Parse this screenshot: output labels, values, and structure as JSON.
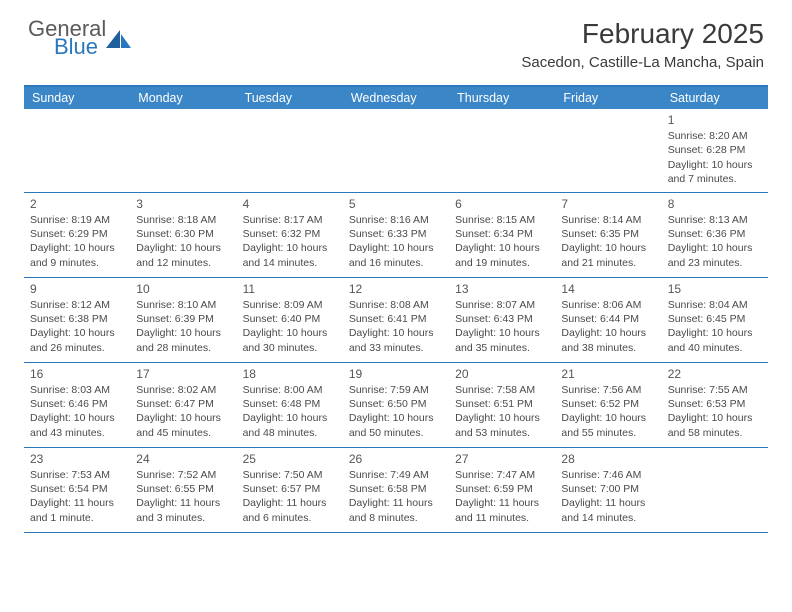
{
  "logo": {
    "word1": "General",
    "word2": "Blue"
  },
  "title": "February 2025",
  "location": "Sacedon, Castille-La Mancha, Spain",
  "colors": {
    "header_bar": "#3b86c7",
    "border": "#2b77bd",
    "text": "#4a4a4a",
    "logo_blue": "#2b77bd",
    "logo_gray": "#5a5a5a"
  },
  "day_names": [
    "Sunday",
    "Monday",
    "Tuesday",
    "Wednesday",
    "Thursday",
    "Friday",
    "Saturday"
  ],
  "weeks": [
    [
      null,
      null,
      null,
      null,
      null,
      null,
      {
        "n": "1",
        "sr": "Sunrise: 8:20 AM",
        "ss": "Sunset: 6:28 PM",
        "d1": "Daylight: 10 hours",
        "d2": "and 7 minutes."
      }
    ],
    [
      {
        "n": "2",
        "sr": "Sunrise: 8:19 AM",
        "ss": "Sunset: 6:29 PM",
        "d1": "Daylight: 10 hours",
        "d2": "and 9 minutes."
      },
      {
        "n": "3",
        "sr": "Sunrise: 8:18 AM",
        "ss": "Sunset: 6:30 PM",
        "d1": "Daylight: 10 hours",
        "d2": "and 12 minutes."
      },
      {
        "n": "4",
        "sr": "Sunrise: 8:17 AM",
        "ss": "Sunset: 6:32 PM",
        "d1": "Daylight: 10 hours",
        "d2": "and 14 minutes."
      },
      {
        "n": "5",
        "sr": "Sunrise: 8:16 AM",
        "ss": "Sunset: 6:33 PM",
        "d1": "Daylight: 10 hours",
        "d2": "and 16 minutes."
      },
      {
        "n": "6",
        "sr": "Sunrise: 8:15 AM",
        "ss": "Sunset: 6:34 PM",
        "d1": "Daylight: 10 hours",
        "d2": "and 19 minutes."
      },
      {
        "n": "7",
        "sr": "Sunrise: 8:14 AM",
        "ss": "Sunset: 6:35 PM",
        "d1": "Daylight: 10 hours",
        "d2": "and 21 minutes."
      },
      {
        "n": "8",
        "sr": "Sunrise: 8:13 AM",
        "ss": "Sunset: 6:36 PM",
        "d1": "Daylight: 10 hours",
        "d2": "and 23 minutes."
      }
    ],
    [
      {
        "n": "9",
        "sr": "Sunrise: 8:12 AM",
        "ss": "Sunset: 6:38 PM",
        "d1": "Daylight: 10 hours",
        "d2": "and 26 minutes."
      },
      {
        "n": "10",
        "sr": "Sunrise: 8:10 AM",
        "ss": "Sunset: 6:39 PM",
        "d1": "Daylight: 10 hours",
        "d2": "and 28 minutes."
      },
      {
        "n": "11",
        "sr": "Sunrise: 8:09 AM",
        "ss": "Sunset: 6:40 PM",
        "d1": "Daylight: 10 hours",
        "d2": "and 30 minutes."
      },
      {
        "n": "12",
        "sr": "Sunrise: 8:08 AM",
        "ss": "Sunset: 6:41 PM",
        "d1": "Daylight: 10 hours",
        "d2": "and 33 minutes."
      },
      {
        "n": "13",
        "sr": "Sunrise: 8:07 AM",
        "ss": "Sunset: 6:43 PM",
        "d1": "Daylight: 10 hours",
        "d2": "and 35 minutes."
      },
      {
        "n": "14",
        "sr": "Sunrise: 8:06 AM",
        "ss": "Sunset: 6:44 PM",
        "d1": "Daylight: 10 hours",
        "d2": "and 38 minutes."
      },
      {
        "n": "15",
        "sr": "Sunrise: 8:04 AM",
        "ss": "Sunset: 6:45 PM",
        "d1": "Daylight: 10 hours",
        "d2": "and 40 minutes."
      }
    ],
    [
      {
        "n": "16",
        "sr": "Sunrise: 8:03 AM",
        "ss": "Sunset: 6:46 PM",
        "d1": "Daylight: 10 hours",
        "d2": "and 43 minutes."
      },
      {
        "n": "17",
        "sr": "Sunrise: 8:02 AM",
        "ss": "Sunset: 6:47 PM",
        "d1": "Daylight: 10 hours",
        "d2": "and 45 minutes."
      },
      {
        "n": "18",
        "sr": "Sunrise: 8:00 AM",
        "ss": "Sunset: 6:48 PM",
        "d1": "Daylight: 10 hours",
        "d2": "and 48 minutes."
      },
      {
        "n": "19",
        "sr": "Sunrise: 7:59 AM",
        "ss": "Sunset: 6:50 PM",
        "d1": "Daylight: 10 hours",
        "d2": "and 50 minutes."
      },
      {
        "n": "20",
        "sr": "Sunrise: 7:58 AM",
        "ss": "Sunset: 6:51 PM",
        "d1": "Daylight: 10 hours",
        "d2": "and 53 minutes."
      },
      {
        "n": "21",
        "sr": "Sunrise: 7:56 AM",
        "ss": "Sunset: 6:52 PM",
        "d1": "Daylight: 10 hours",
        "d2": "and 55 minutes."
      },
      {
        "n": "22",
        "sr": "Sunrise: 7:55 AM",
        "ss": "Sunset: 6:53 PM",
        "d1": "Daylight: 10 hours",
        "d2": "and 58 minutes."
      }
    ],
    [
      {
        "n": "23",
        "sr": "Sunrise: 7:53 AM",
        "ss": "Sunset: 6:54 PM",
        "d1": "Daylight: 11 hours",
        "d2": "and 1 minute."
      },
      {
        "n": "24",
        "sr": "Sunrise: 7:52 AM",
        "ss": "Sunset: 6:55 PM",
        "d1": "Daylight: 11 hours",
        "d2": "and 3 minutes."
      },
      {
        "n": "25",
        "sr": "Sunrise: 7:50 AM",
        "ss": "Sunset: 6:57 PM",
        "d1": "Daylight: 11 hours",
        "d2": "and 6 minutes."
      },
      {
        "n": "26",
        "sr": "Sunrise: 7:49 AM",
        "ss": "Sunset: 6:58 PM",
        "d1": "Daylight: 11 hours",
        "d2": "and 8 minutes."
      },
      {
        "n": "27",
        "sr": "Sunrise: 7:47 AM",
        "ss": "Sunset: 6:59 PM",
        "d1": "Daylight: 11 hours",
        "d2": "and 11 minutes."
      },
      {
        "n": "28",
        "sr": "Sunrise: 7:46 AM",
        "ss": "Sunset: 7:00 PM",
        "d1": "Daylight: 11 hours",
        "d2": "and 14 minutes."
      },
      null
    ]
  ]
}
